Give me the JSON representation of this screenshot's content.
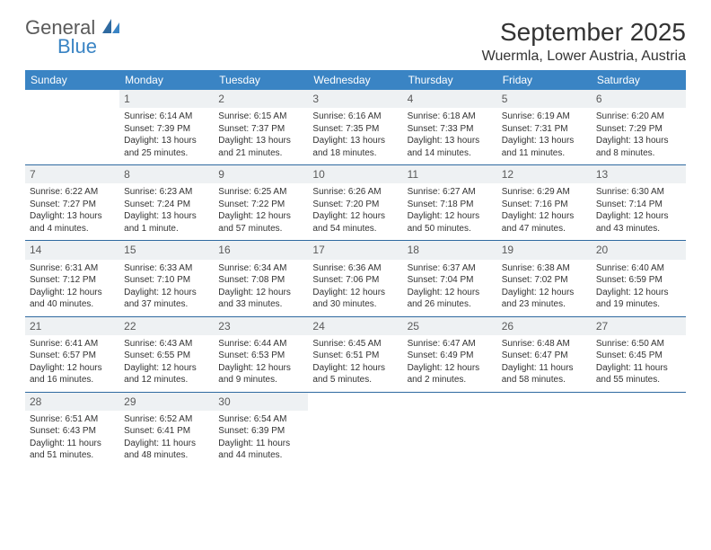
{
  "brand": {
    "general": "General",
    "blue": "Blue"
  },
  "header": {
    "title": "September 2025",
    "location": "Wuermla, Lower Austria, Austria"
  },
  "style": {
    "header_bg": "#3a84c4",
    "header_text": "#ffffff",
    "daynum_bg": "#eef1f3",
    "daynum_text": "#5a5a5a",
    "border_color": "#2f6aa0",
    "body_text": "#333333",
    "title_fontsize": 28,
    "location_fontsize": 16,
    "dayheader_fontsize": 12,
    "cell_fontsize": 10
  },
  "day_headers": [
    "Sunday",
    "Monday",
    "Tuesday",
    "Wednesday",
    "Thursday",
    "Friday",
    "Saturday"
  ],
  "weeks": [
    [
      {
        "n": "",
        "sr": "",
        "ss": "",
        "dl1": "",
        "dl2": ""
      },
      {
        "n": "1",
        "sr": "Sunrise: 6:14 AM",
        "ss": "Sunset: 7:39 PM",
        "dl1": "Daylight: 13 hours",
        "dl2": "and 25 minutes."
      },
      {
        "n": "2",
        "sr": "Sunrise: 6:15 AM",
        "ss": "Sunset: 7:37 PM",
        "dl1": "Daylight: 13 hours",
        "dl2": "and 21 minutes."
      },
      {
        "n": "3",
        "sr": "Sunrise: 6:16 AM",
        "ss": "Sunset: 7:35 PM",
        "dl1": "Daylight: 13 hours",
        "dl2": "and 18 minutes."
      },
      {
        "n": "4",
        "sr": "Sunrise: 6:18 AM",
        "ss": "Sunset: 7:33 PM",
        "dl1": "Daylight: 13 hours",
        "dl2": "and 14 minutes."
      },
      {
        "n": "5",
        "sr": "Sunrise: 6:19 AM",
        "ss": "Sunset: 7:31 PM",
        "dl1": "Daylight: 13 hours",
        "dl2": "and 11 minutes."
      },
      {
        "n": "6",
        "sr": "Sunrise: 6:20 AM",
        "ss": "Sunset: 7:29 PM",
        "dl1": "Daylight: 13 hours",
        "dl2": "and 8 minutes."
      }
    ],
    [
      {
        "n": "7",
        "sr": "Sunrise: 6:22 AM",
        "ss": "Sunset: 7:27 PM",
        "dl1": "Daylight: 13 hours",
        "dl2": "and 4 minutes."
      },
      {
        "n": "8",
        "sr": "Sunrise: 6:23 AM",
        "ss": "Sunset: 7:24 PM",
        "dl1": "Daylight: 13 hours",
        "dl2": "and 1 minute."
      },
      {
        "n": "9",
        "sr": "Sunrise: 6:25 AM",
        "ss": "Sunset: 7:22 PM",
        "dl1": "Daylight: 12 hours",
        "dl2": "and 57 minutes."
      },
      {
        "n": "10",
        "sr": "Sunrise: 6:26 AM",
        "ss": "Sunset: 7:20 PM",
        "dl1": "Daylight: 12 hours",
        "dl2": "and 54 minutes."
      },
      {
        "n": "11",
        "sr": "Sunrise: 6:27 AM",
        "ss": "Sunset: 7:18 PM",
        "dl1": "Daylight: 12 hours",
        "dl2": "and 50 minutes."
      },
      {
        "n": "12",
        "sr": "Sunrise: 6:29 AM",
        "ss": "Sunset: 7:16 PM",
        "dl1": "Daylight: 12 hours",
        "dl2": "and 47 minutes."
      },
      {
        "n": "13",
        "sr": "Sunrise: 6:30 AM",
        "ss": "Sunset: 7:14 PM",
        "dl1": "Daylight: 12 hours",
        "dl2": "and 43 minutes."
      }
    ],
    [
      {
        "n": "14",
        "sr": "Sunrise: 6:31 AM",
        "ss": "Sunset: 7:12 PM",
        "dl1": "Daylight: 12 hours",
        "dl2": "and 40 minutes."
      },
      {
        "n": "15",
        "sr": "Sunrise: 6:33 AM",
        "ss": "Sunset: 7:10 PM",
        "dl1": "Daylight: 12 hours",
        "dl2": "and 37 minutes."
      },
      {
        "n": "16",
        "sr": "Sunrise: 6:34 AM",
        "ss": "Sunset: 7:08 PM",
        "dl1": "Daylight: 12 hours",
        "dl2": "and 33 minutes."
      },
      {
        "n": "17",
        "sr": "Sunrise: 6:36 AM",
        "ss": "Sunset: 7:06 PM",
        "dl1": "Daylight: 12 hours",
        "dl2": "and 30 minutes."
      },
      {
        "n": "18",
        "sr": "Sunrise: 6:37 AM",
        "ss": "Sunset: 7:04 PM",
        "dl1": "Daylight: 12 hours",
        "dl2": "and 26 minutes."
      },
      {
        "n": "19",
        "sr": "Sunrise: 6:38 AM",
        "ss": "Sunset: 7:02 PM",
        "dl1": "Daylight: 12 hours",
        "dl2": "and 23 minutes."
      },
      {
        "n": "20",
        "sr": "Sunrise: 6:40 AM",
        "ss": "Sunset: 6:59 PM",
        "dl1": "Daylight: 12 hours",
        "dl2": "and 19 minutes."
      }
    ],
    [
      {
        "n": "21",
        "sr": "Sunrise: 6:41 AM",
        "ss": "Sunset: 6:57 PM",
        "dl1": "Daylight: 12 hours",
        "dl2": "and 16 minutes."
      },
      {
        "n": "22",
        "sr": "Sunrise: 6:43 AM",
        "ss": "Sunset: 6:55 PM",
        "dl1": "Daylight: 12 hours",
        "dl2": "and 12 minutes."
      },
      {
        "n": "23",
        "sr": "Sunrise: 6:44 AM",
        "ss": "Sunset: 6:53 PM",
        "dl1": "Daylight: 12 hours",
        "dl2": "and 9 minutes."
      },
      {
        "n": "24",
        "sr": "Sunrise: 6:45 AM",
        "ss": "Sunset: 6:51 PM",
        "dl1": "Daylight: 12 hours",
        "dl2": "and 5 minutes."
      },
      {
        "n": "25",
        "sr": "Sunrise: 6:47 AM",
        "ss": "Sunset: 6:49 PM",
        "dl1": "Daylight: 12 hours",
        "dl2": "and 2 minutes."
      },
      {
        "n": "26",
        "sr": "Sunrise: 6:48 AM",
        "ss": "Sunset: 6:47 PM",
        "dl1": "Daylight: 11 hours",
        "dl2": "and 58 minutes."
      },
      {
        "n": "27",
        "sr": "Sunrise: 6:50 AM",
        "ss": "Sunset: 6:45 PM",
        "dl1": "Daylight: 11 hours",
        "dl2": "and 55 minutes."
      }
    ],
    [
      {
        "n": "28",
        "sr": "Sunrise: 6:51 AM",
        "ss": "Sunset: 6:43 PM",
        "dl1": "Daylight: 11 hours",
        "dl2": "and 51 minutes."
      },
      {
        "n": "29",
        "sr": "Sunrise: 6:52 AM",
        "ss": "Sunset: 6:41 PM",
        "dl1": "Daylight: 11 hours",
        "dl2": "and 48 minutes."
      },
      {
        "n": "30",
        "sr": "Sunrise: 6:54 AM",
        "ss": "Sunset: 6:39 PM",
        "dl1": "Daylight: 11 hours",
        "dl2": "and 44 minutes."
      },
      {
        "n": "",
        "sr": "",
        "ss": "",
        "dl1": "",
        "dl2": ""
      },
      {
        "n": "",
        "sr": "",
        "ss": "",
        "dl1": "",
        "dl2": ""
      },
      {
        "n": "",
        "sr": "",
        "ss": "",
        "dl1": "",
        "dl2": ""
      },
      {
        "n": "",
        "sr": "",
        "ss": "",
        "dl1": "",
        "dl2": ""
      }
    ]
  ]
}
